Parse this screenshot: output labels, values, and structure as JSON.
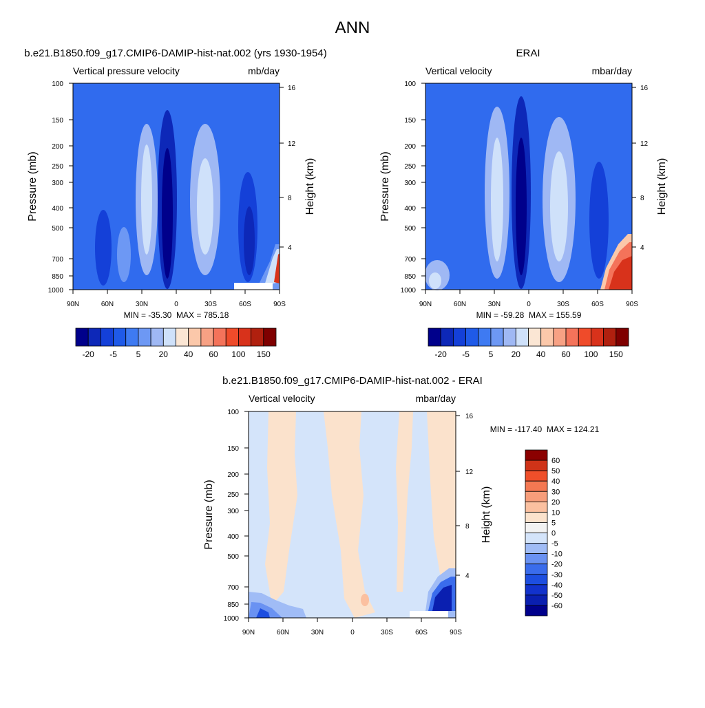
{
  "page_title": "ANN",
  "panels": [
    {
      "title": "b.e21.B1850.f09_g17.CMIP6-DAMIP-hist-nat.002 (yrs 1930-1954)",
      "left_label": "Vertical pressure velocity",
      "right_label": "mb/day",
      "stats": "MIN = -35.30  MAX = 785.18",
      "colorbar": {
        "colors": [
          "#00008b",
          "#0d28b8",
          "#1440d8",
          "#1f5ae8",
          "#3e7af2",
          "#6d98f4",
          "#9fb8f4",
          "#cfe1fa",
          "#fbe6d4",
          "#fbc8aa",
          "#f7a184",
          "#f4735a",
          "#ef4b2a",
          "#d8321b",
          "#b0200f",
          "#7f0000"
        ],
        "tick_labels": [
          "-20",
          "-5",
          "5",
          "20",
          "40",
          "60",
          "100",
          "150"
        ]
      }
    },
    {
      "title": "ERAI",
      "left_label": "Vertical velocity",
      "right_label": "mbar/day",
      "stats": "MIN = -59.28  MAX = 155.59",
      "colorbar": {
        "colors": [
          "#00008b",
          "#0d28b8",
          "#1440d8",
          "#1f5ae8",
          "#3e7af2",
          "#6d98f4",
          "#9fb8f4",
          "#cfe1fa",
          "#fbe6d4",
          "#fbc8aa",
          "#f7a184",
          "#f4735a",
          "#ef4b2a",
          "#d8321b",
          "#b0200f",
          "#7f0000"
        ],
        "tick_labels": [
          "-20",
          "-5",
          "5",
          "20",
          "40",
          "60",
          "100",
          "150"
        ]
      }
    },
    {
      "title": "b.e21.B1850.f09_g17.CMIP6-DAMIP-hist-nat.002 - ERAI",
      "left_label": "Vertical velocity",
      "right_label": "mbar/day",
      "stats": "MIN = -117.40  MAX = 124.21",
      "colorbar": {
        "colors": [
          "#00008b",
          "#0a1fb0",
          "#1232cc",
          "#1d4ee0",
          "#3a6cec",
          "#6a92f2",
          "#a0bcf6",
          "#d4e4fa",
          "#f2f2f2",
          "#fbe2cc",
          "#fbc0a0",
          "#f79d7a",
          "#f47852",
          "#ef4f2a",
          "#cf3318",
          "#8b0000"
        ],
        "tick_labels": [
          "-60",
          "-50",
          "-40",
          "-30",
          "-20",
          "-10",
          "-5",
          "0",
          "5",
          "10",
          "20",
          "30",
          "40",
          "50",
          "60"
        ]
      }
    }
  ],
  "chart_data": [
    {
      "type": "heatmap",
      "title": "b.e21.B1850.f09_g17.CMIP6-DAMIP-hist-nat.002 (yrs 1930-1954)",
      "ylabel": "Pressure (mb)",
      "y2label": "Height (km)",
      "x_ticks": [
        "90N",
        "60N",
        "30N",
        "0",
        "30S",
        "60S",
        "90S"
      ],
      "y_ticks": [
        100,
        150,
        200,
        250,
        300,
        400,
        500,
        700,
        850,
        1000
      ],
      "y2_ticks": [
        4,
        8,
        12,
        16
      ],
      "units": "mb/day",
      "min": -35.3,
      "max": 785.18,
      "levels": [
        -20,
        -5,
        5,
        20,
        40,
        60,
        100,
        150
      ]
    },
    {
      "type": "heatmap",
      "title": "ERAI",
      "ylabel": "Pressure (mb)",
      "y2label": "Height (km)",
      "x_ticks": [
        "90N",
        "60N",
        "30N",
        "0",
        "30S",
        "60S",
        "90S"
      ],
      "y_ticks": [
        100,
        150,
        200,
        250,
        300,
        400,
        500,
        700,
        850,
        1000
      ],
      "y2_ticks": [
        4,
        8,
        12,
        16
      ],
      "units": "mbar/day",
      "min": -59.28,
      "max": 155.59,
      "levels": [
        -20,
        -5,
        5,
        20,
        40,
        60,
        100,
        150
      ]
    },
    {
      "type": "heatmap",
      "title": "b.e21.B1850.f09_g17.CMIP6-DAMIP-hist-nat.002 - ERAI",
      "ylabel": "Pressure (mb)",
      "y2label": "Height (km)",
      "x_ticks": [
        "90N",
        "60N",
        "30N",
        "0",
        "30S",
        "60S",
        "90S"
      ],
      "y_ticks": [
        100,
        150,
        200,
        250,
        300,
        400,
        500,
        700,
        850,
        1000
      ],
      "y2_ticks": [
        4,
        8,
        12,
        16
      ],
      "units": "mbar/day",
      "min": -117.4,
      "max": 124.21,
      "levels": [
        -60,
        -50,
        -40,
        -30,
        -20,
        -10,
        -5,
        0,
        5,
        10,
        20,
        30,
        40,
        50,
        60
      ]
    }
  ]
}
